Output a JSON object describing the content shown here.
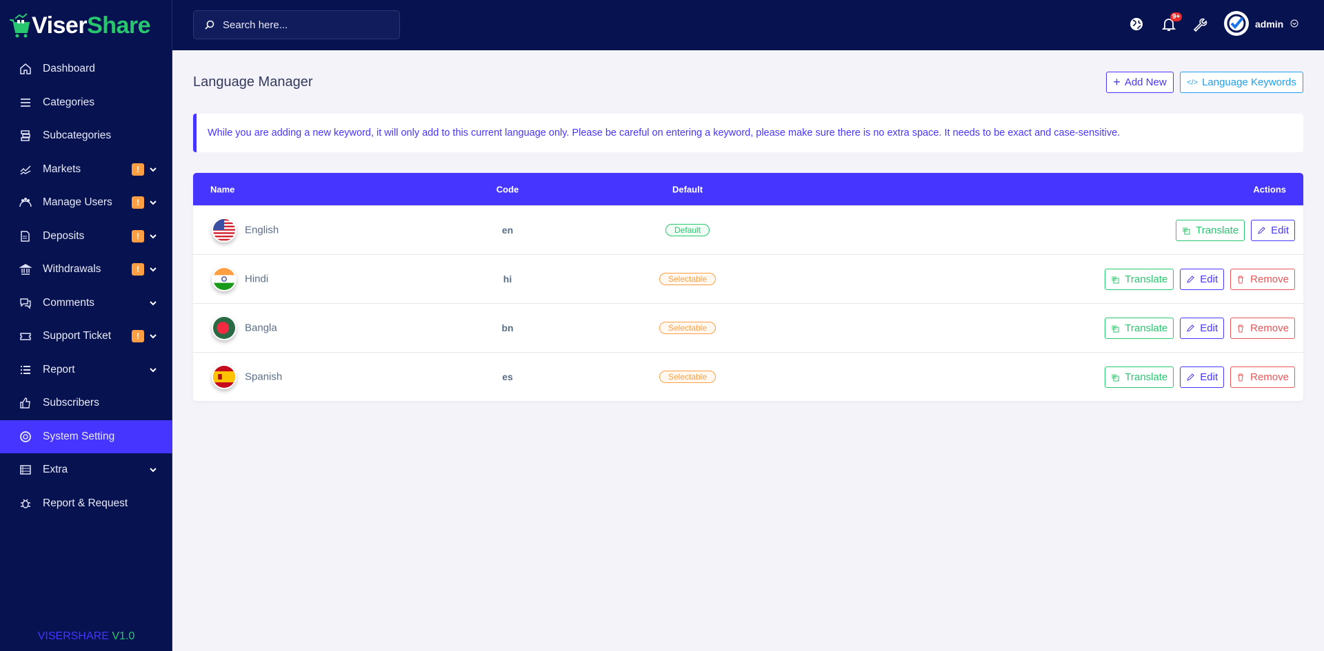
{
  "brand": {
    "part1": "Viser",
    "part2": "Share",
    "version_name": "VISERSHARE",
    "version": "V1.0"
  },
  "sidebar": {
    "items": [
      {
        "label": "Dashboard",
        "icon": "home-icon",
        "badge": false,
        "chevron": false
      },
      {
        "label": "Categories",
        "icon": "menu-icon",
        "badge": false,
        "chevron": false
      },
      {
        "label": "Subcategories",
        "icon": "stack-icon",
        "badge": false,
        "chevron": false
      },
      {
        "label": "Markets",
        "icon": "chart-line-icon",
        "badge": true,
        "chevron": true
      },
      {
        "label": "Manage Users",
        "icon": "users-icon",
        "badge": true,
        "chevron": true
      },
      {
        "label": "Deposits",
        "icon": "invoice-icon",
        "badge": true,
        "chevron": true
      },
      {
        "label": "Withdrawals",
        "icon": "bank-icon",
        "badge": true,
        "chevron": true
      },
      {
        "label": "Comments",
        "icon": "comments-icon",
        "badge": false,
        "chevron": true
      },
      {
        "label": "Support Ticket",
        "icon": "ticket-icon",
        "badge": true,
        "chevron": true
      },
      {
        "label": "Report",
        "icon": "list-icon",
        "badge": false,
        "chevron": true
      },
      {
        "label": "Subscribers",
        "icon": "thumbs-up-icon",
        "badge": false,
        "chevron": false
      },
      {
        "label": "System Setting",
        "icon": "life-ring-icon",
        "badge": false,
        "chevron": false,
        "active": true
      },
      {
        "label": "Extra",
        "icon": "server-icon",
        "badge": false,
        "chevron": true
      },
      {
        "label": "Report & Request",
        "icon": "bug-icon",
        "badge": false,
        "chevron": false
      }
    ],
    "badge_text": "!"
  },
  "topbar": {
    "search_placeholder": "Search here...",
    "notification_count": "9+",
    "username": "admin"
  },
  "page": {
    "title": "Language Manager",
    "add_new": "Add New",
    "keywords": "Language Keywords",
    "alert": "While you are adding a new keyword, it will only add to this current language only. Please be careful on entering a keyword, please make sure there is no extra space. It needs to be exact and case-sensitive."
  },
  "table": {
    "headers": {
      "name": "Name",
      "code": "Code",
      "default": "Default",
      "actions": "Actions"
    },
    "rows": [
      {
        "name": "English",
        "code": "en",
        "status": "Default",
        "flag": "us"
      },
      {
        "name": "Hindi",
        "code": "hi",
        "status": "Selectable",
        "flag": "in"
      },
      {
        "name": "Bangla",
        "code": "bn",
        "status": "Selectable",
        "flag": "bd"
      },
      {
        "name": "Spanish",
        "code": "es",
        "status": "Selectable",
        "flag": "es"
      }
    ],
    "translate": "Translate",
    "edit": "Edit",
    "remove": "Remove"
  },
  "colors": {
    "sidebar": "#071251",
    "primary": "#4634ff",
    "success": "#28c76f",
    "warning": "#ff9f43",
    "danger": "#ea5455"
  }
}
